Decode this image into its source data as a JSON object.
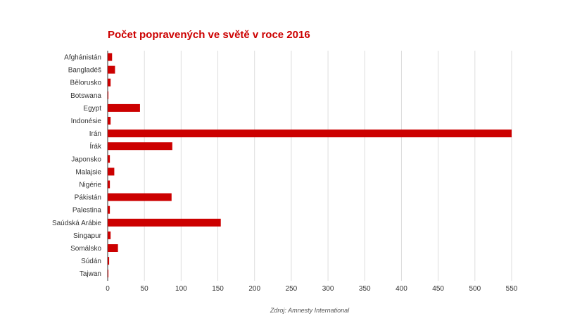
{
  "chart_data": {
    "type": "bar",
    "orientation": "horizontal",
    "title": "Počet popravených ve světě v roce 2016",
    "source": "Zdroj: Amnesty International",
    "categories": [
      "Afghánistán",
      "Bangladéš",
      "Bělorusko",
      "Botswana",
      "Egypt",
      "Indonésie",
      "Irán",
      "Írák",
      "Japonsko",
      "Malajsie",
      "Nigérie",
      "Pákistán",
      "Palestina",
      "Saúdská Arábie",
      "Singapur",
      "Somálsko",
      "Súdán",
      "Tajwan"
    ],
    "values": [
      6,
      10,
      4,
      1,
      44,
      4,
      550,
      88,
      3,
      9,
      3,
      87,
      3,
      154,
      4,
      14,
      2,
      1
    ],
    "xlim": [
      0,
      550
    ],
    "xticks": [
      0,
      50,
      100,
      150,
      200,
      250,
      300,
      350,
      400,
      450,
      500,
      550
    ],
    "grid": true,
    "bar_color": "#cc0000"
  }
}
